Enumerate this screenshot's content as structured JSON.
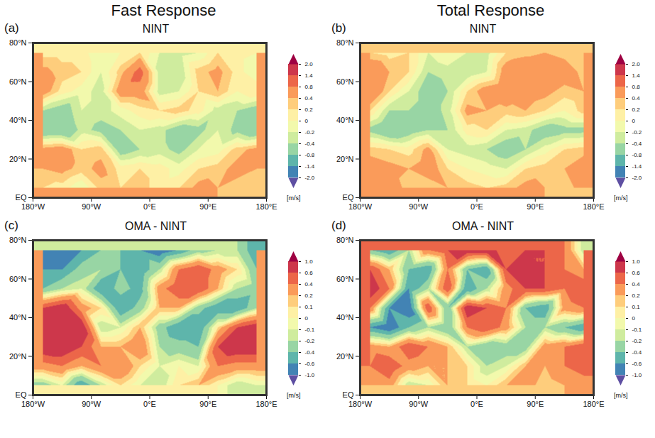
{
  "column_titles": [
    "Fast Response",
    "Total Response"
  ],
  "chart_data": [
    {
      "type": "heatmap",
      "label": "(a)",
      "title": "NINT",
      "x": [
        -165,
        -135,
        -105,
        -75,
        -45,
        -15,
        15,
        45,
        75,
        105,
        135,
        165
      ],
      "y": [
        75,
        65,
        55,
        45,
        35,
        25,
        15,
        5
      ],
      "values": [
        [
          0.1,
          0.1,
          0.1,
          -0.2,
          0,
          0.2,
          -0.2,
          -0.3,
          -0.2,
          0.2,
          0.1,
          0
        ],
        [
          0.5,
          0.3,
          0.2,
          -0.2,
          0.3,
          1.0,
          -0.3,
          -0.4,
          0.3,
          0.5,
          0.1,
          -0.2
        ],
        [
          0.6,
          0.1,
          -0.1,
          -0.3,
          0.6,
          0.6,
          -0.3,
          -0.2,
          0.2,
          0.4,
          0,
          0.2
        ],
        [
          -0.4,
          -0.6,
          -0.2,
          -0.3,
          -0.1,
          0.1,
          0.2,
          0.3,
          0.1,
          -0.3,
          -0.4,
          -0.6
        ],
        [
          -0.8,
          -0.8,
          -0.3,
          -0.5,
          -0.4,
          -0.2,
          -0.3,
          -0.6,
          -0.5,
          -0.2,
          -0.5,
          -0.8
        ],
        [
          0.5,
          0.6,
          0.2,
          0.3,
          -0.6,
          -0.4,
          -0.3,
          -0.5,
          -0.2,
          -0.1,
          0.3,
          0.5
        ],
        [
          0.4,
          0.5,
          0.3,
          0.5,
          0.1,
          0.2,
          0.1,
          -0.1,
          0.2,
          0.3,
          0.5,
          0.4
        ],
        [
          0.2,
          0.1,
          -0.2,
          0.3,
          0.2,
          0.3,
          0.1,
          0.2,
          0.5,
          0.4,
          0.3,
          0.2
        ]
      ],
      "xlim": [
        -180,
        180
      ],
      "ylim": [
        0,
        80
      ],
      "xticks": [
        {
          "value": -180,
          "label": "180°W"
        },
        {
          "value": -90,
          "label": "90°W"
        },
        {
          "value": 0,
          "label": "0°E"
        },
        {
          "value": 90,
          "label": "90°E"
        },
        {
          "value": 180,
          "label": "180°E"
        }
      ],
      "yticks": [
        {
          "value": 0,
          "label": "EQ"
        },
        {
          "value": 20,
          "label": "20°N"
        },
        {
          "value": 40,
          "label": "40°N"
        },
        {
          "value": 60,
          "label": "60°N"
        },
        {
          "value": 80,
          "label": "80°N"
        }
      ],
      "colorbar": {
        "range": [
          -2,
          2
        ],
        "label": "[m/s]",
        "ticks": [
          {
            "value": -2,
            "label": "-2.0"
          },
          -1.4,
          -0.8,
          -0.4,
          -0.2,
          0,
          0.2,
          0.4,
          0.8,
          1.4,
          {
            "value": 2,
            "label": "2.0"
          }
        ]
      }
    },
    {
      "type": "heatmap",
      "label": "(b)",
      "title": "NINT",
      "x": [
        -165,
        -135,
        -105,
        -75,
        -45,
        -15,
        15,
        45,
        75,
        105,
        135,
        165
      ],
      "y": [
        75,
        65,
        55,
        45,
        35,
        25,
        15,
        5
      ],
      "values": [
        [
          0.2,
          0.1,
          0.2,
          -0.2,
          0,
          -0.2,
          -0.3,
          0.2,
          0.3,
          0.4,
          0.3,
          0.2
        ],
        [
          0.8,
          0.4,
          0.2,
          -0.4,
          -0.3,
          -0.4,
          -0.2,
          0.6,
          0.8,
          0.8,
          0.6,
          0.3
        ],
        [
          0.8,
          0.2,
          -0.2,
          -0.6,
          -0.4,
          0.2,
          0.6,
          0.8,
          0.6,
          0.5,
          0.3,
          0.4
        ],
        [
          0.2,
          -0.4,
          -0.4,
          -0.6,
          -0.3,
          0.5,
          0.4,
          0.3,
          0.4,
          0.2,
          0,
          0.3
        ],
        [
          -0.5,
          -0.8,
          -0.6,
          -0.4,
          -0.4,
          0.1,
          0.2,
          -0.2,
          -0.3,
          -0.6,
          -0.5,
          -0.5
        ],
        [
          0.3,
          0.2,
          0.1,
          0.5,
          -0.2,
          -0.3,
          -0.4,
          -0.6,
          -0.4,
          -0.1,
          0.2,
          0.3
        ],
        [
          0.6,
          0.5,
          0.4,
          0.6,
          0.2,
          0,
          -0.1,
          -0.2,
          0.2,
          0.3,
          0.4,
          0.6
        ],
        [
          0.4,
          0.6,
          0.3,
          0.2,
          0.4,
          0.3,
          0.2,
          0.3,
          0.5,
          0.4,
          0.3,
          0.5
        ]
      ],
      "xlim": [
        -180,
        180
      ],
      "ylim": [
        0,
        80
      ],
      "xticks": [
        {
          "value": -180,
          "label": "180°W"
        },
        {
          "value": -90,
          "label": "90°W"
        },
        {
          "value": 0,
          "label": "0°E"
        },
        {
          "value": 90,
          "label": "90°E"
        },
        {
          "value": 180,
          "label": "180°E"
        }
      ],
      "yticks": [
        {
          "value": 0,
          "label": "EQ"
        },
        {
          "value": 20,
          "label": "20°N"
        },
        {
          "value": 40,
          "label": "40°N"
        },
        {
          "value": 60,
          "label": "60°N"
        },
        {
          "value": 80,
          "label": "80°N"
        }
      ],
      "colorbar": {
        "range": [
          -2,
          2
        ],
        "label": "[m/s]",
        "ticks": [
          {
            "value": -2,
            "label": "-2.0"
          },
          -1.4,
          -0.8,
          -0.4,
          -0.2,
          0,
          0.2,
          0.4,
          0.8,
          1.4,
          {
            "value": 2,
            "label": "2.0"
          }
        ]
      }
    },
    {
      "type": "heatmap",
      "label": "(c)",
      "title": "OMA - NINT",
      "x": [
        -165,
        -135,
        -105,
        -75,
        -45,
        -15,
        15,
        45,
        75,
        105,
        135,
        165
      ],
      "y": [
        75,
        65,
        55,
        45,
        35,
        25,
        15,
        5
      ],
      "values": [
        [
          -0.8,
          -0.8,
          -0.6,
          -0.4,
          -0.4,
          -0.6,
          -0.8,
          -0.6,
          -0.3,
          -0.2,
          -0.2,
          -0.6
        ],
        [
          -0.6,
          -0.6,
          -0.3,
          -0.2,
          -0.4,
          -0.6,
          -0.2,
          0.4,
          0.6,
          0.3,
          0.1,
          -0.4
        ],
        [
          -0.4,
          -0.2,
          -0.1,
          -0.6,
          -0.3,
          -0.5,
          0.3,
          0.6,
          0.6,
          0.2,
          -0.2,
          -0.3
        ],
        [
          0.6,
          0.8,
          0.3,
          0.1,
          -0.6,
          -0.3,
          0.2,
          0.2,
          -0.3,
          -0.6,
          -0.6,
          -0.2
        ],
        [
          0.8,
          1.0,
          0.8,
          -0.2,
          -0.1,
          0.2,
          -0.3,
          -0.6,
          -0.6,
          0.1,
          0.6,
          0.8
        ],
        [
          0.8,
          0.8,
          0.6,
          0.2,
          0.2,
          0.4,
          -0.2,
          -0.3,
          -0.4,
          0.6,
          0.8,
          0.8
        ],
        [
          0.3,
          0.4,
          0.2,
          0.4,
          0.4,
          0.1,
          -0.1,
          0,
          -0.1,
          0.4,
          0.3,
          0.3
        ],
        [
          -0.3,
          -0.1,
          -0.6,
          -0.2,
          0.1,
          -0.1,
          -0.2,
          0.1,
          0.2,
          0,
          -0.2,
          -0.1
        ]
      ],
      "xlim": [
        -180,
        180
      ],
      "ylim": [
        0,
        80
      ],
      "xticks": [
        {
          "value": -180,
          "label": "180°W"
        },
        {
          "value": -90,
          "label": "90°W"
        },
        {
          "value": 0,
          "label": "0°E"
        },
        {
          "value": 90,
          "label": "90°E"
        },
        {
          "value": 180,
          "label": "180°E"
        }
      ],
      "yticks": [
        {
          "value": 0,
          "label": "EQ"
        },
        {
          "value": 20,
          "label": "20°N"
        },
        {
          "value": 40,
          "label": "40°N"
        },
        {
          "value": 60,
          "label": "60°N"
        },
        {
          "value": 80,
          "label": "80°N"
        }
      ],
      "colorbar": {
        "range": [
          -1,
          1
        ],
        "label": "[m/s]",
        "ticks": [
          {
            "value": -1,
            "label": "-1.0"
          },
          -0.6,
          -0.4,
          -0.2,
          -0.1,
          0,
          0.1,
          0.2,
          0.4,
          0.6,
          {
            "value": 1,
            "label": "1.0"
          }
        ]
      }
    },
    {
      "type": "heatmap",
      "label": "(d)",
      "title": "OMA - NINT",
      "x": [
        -165,
        -135,
        -105,
        -75,
        -45,
        -15,
        15,
        45,
        75,
        105,
        135,
        165
      ],
      "y": [
        75,
        65,
        55,
        45,
        35,
        25,
        15,
        5
      ],
      "values": [
        [
          -0.4,
          -0.6,
          -0.2,
          0.4,
          0.6,
          0.8,
          0.8,
          0.4,
          0.6,
          0.6,
          0.4,
          -0.2
        ],
        [
          0.6,
          0.2,
          -0.4,
          -0.6,
          0.4,
          -0.4,
          -0.6,
          0.6,
          0.8,
          0.6,
          0.4,
          0.2
        ],
        [
          0.8,
          0.4,
          -0.6,
          -0.2,
          0.6,
          -0.6,
          -0.2,
          0.3,
          0.6,
          0.6,
          0.4,
          0.6
        ],
        [
          0.4,
          -0.6,
          -0.8,
          0.6,
          -0.4,
          0.8,
          0.6,
          0.4,
          -0.4,
          -0.6,
          0.3,
          0.4
        ],
        [
          -0.6,
          -0.8,
          -0.4,
          -0.2,
          -0.4,
          0.4,
          0.6,
          0.3,
          -0.2,
          -0.2,
          -0.4,
          -0.6
        ],
        [
          0.3,
          0.2,
          0.6,
          0.4,
          0.2,
          -0.2,
          -0.4,
          -0.3,
          -0.3,
          0.3,
          0.4,
          0.6
        ],
        [
          0.4,
          0.6,
          0.3,
          0.2,
          0.2,
          0.1,
          -0.2,
          -0.1,
          0.2,
          0.2,
          0.4,
          0.5
        ],
        [
          0.2,
          0.3,
          -0.2,
          -0.1,
          0.2,
          0.1,
          0,
          0.2,
          0.3,
          0.1,
          0.2,
          0.3
        ]
      ],
      "xlim": [
        -180,
        180
      ],
      "ylim": [
        0,
        80
      ],
      "xticks": [
        {
          "value": -180,
          "label": "180°W"
        },
        {
          "value": -90,
          "label": "90°W"
        },
        {
          "value": 0,
          "label": "0°E"
        },
        {
          "value": 90,
          "label": "90°E"
        },
        {
          "value": 180,
          "label": "180°E"
        }
      ],
      "yticks": [
        {
          "value": 0,
          "label": "EQ"
        },
        {
          "value": 20,
          "label": "20°N"
        },
        {
          "value": 40,
          "label": "40°N"
        },
        {
          "value": 60,
          "label": "60°N"
        },
        {
          "value": 80,
          "label": "80°N"
        }
      ],
      "colorbar": {
        "range": [
          -1,
          1
        ],
        "label": "[m/s]",
        "ticks": [
          {
            "value": -1,
            "label": "-1.0"
          },
          -0.6,
          -0.4,
          -0.2,
          -0.1,
          0,
          0.1,
          0.2,
          0.4,
          0.6,
          {
            "value": 1,
            "label": "1.0"
          }
        ]
      }
    }
  ]
}
